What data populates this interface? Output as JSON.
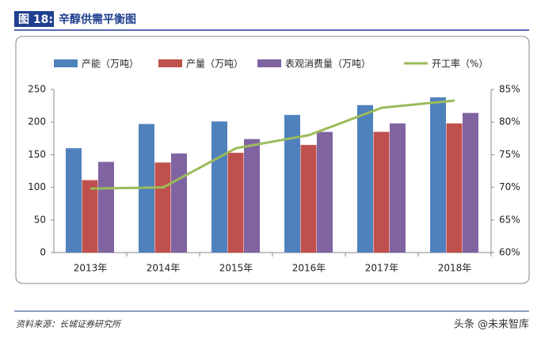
{
  "header": {
    "label": "图 18:",
    "title": "辛醇供需平衡图"
  },
  "chart_data": {
    "type": "bar",
    "categories": [
      "2013年",
      "2014年",
      "2015年",
      "2016年",
      "2017年",
      "2018年"
    ],
    "series": [
      {
        "name": "产能（万吨）",
        "color": "#4f81bd",
        "type": "bar",
        "values": [
          160,
          197,
          201,
          211,
          226,
          238
        ]
      },
      {
        "name": "产量（万吨）",
        "color": "#c0504d",
        "type": "bar",
        "values": [
          111,
          138,
          153,
          165,
          185,
          198
        ]
      },
      {
        "name": "表观消费量（万吨）",
        "color": "#8064a2",
        "type": "bar",
        "values": [
          139,
          152,
          174,
          185,
          198,
          214
        ]
      },
      {
        "name": "开工率（%）",
        "color": "#9bbb59",
        "type": "line",
        "axis": "y2",
        "values": [
          69.8,
          70,
          76,
          78,
          82.2,
          83.3
        ]
      }
    ],
    "ylim": [
      0,
      250
    ],
    "yticks": [
      0,
      50,
      100,
      150,
      200,
      250
    ],
    "y2lim": [
      60,
      85
    ],
    "y2ticks": [
      {
        "value": 60,
        "label": "60%"
      },
      {
        "value": 65,
        "label": "65%"
      },
      {
        "value": 70,
        "label": "70%"
      },
      {
        "value": 75,
        "label": "75%"
      },
      {
        "value": 80,
        "label": "80%"
      },
      {
        "value": 85,
        "label": "85%"
      }
    ],
    "legend": "top"
  },
  "footer": {
    "source": "资料来源：长城证券研究所",
    "watermark": "头条 @未来智库"
  }
}
